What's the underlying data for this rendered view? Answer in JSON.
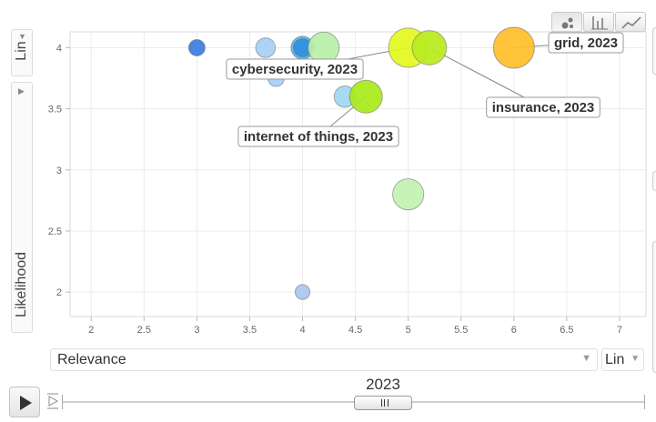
{
  "controls": {
    "chart_type_buttons": [
      {
        "icon": "bubble-chart-icon",
        "active": true
      },
      {
        "icon": "bar-chart-icon",
        "active": false
      },
      {
        "icon": "line-chart-icon",
        "active": false
      }
    ],
    "y_scale_label": "Lin",
    "y_metric_label": "Likelihood",
    "x_metric_label": "Relevance",
    "x_scale_label": "Lin",
    "play_icon": "play-icon",
    "speed_icon": "speed-icon",
    "time_label": "2023",
    "time_slider_grip_icon": "slider-grip-icon"
  },
  "chart_data": {
    "type": "scatter",
    "xlabel": "Relevance",
    "ylabel": "Likelihood",
    "xlim": [
      1.8,
      7.25
    ],
    "ylim": [
      1.8,
      4.13
    ],
    "x_ticks": [
      "2",
      "2.5",
      "3",
      "3.5",
      "4",
      "4.5",
      "5",
      "5.5",
      "6",
      "6.5",
      "7"
    ],
    "y_ticks": [
      "2",
      "2.5",
      "3",
      "3.5",
      "4"
    ],
    "grid": true,
    "points": [
      {
        "x": 3.0,
        "y": 4.0,
        "size": 1.0,
        "color": "#3a7de0"
      },
      {
        "x": 3.65,
        "y": 4.0,
        "size": 1.2,
        "color": "#a6d0f5"
      },
      {
        "x": 3.75,
        "y": 3.75,
        "size": 1.0,
        "color": "#a6d0f5"
      },
      {
        "x": 4.0,
        "y": 4.0,
        "size": 1.4,
        "color": "#52b4ea"
      },
      {
        "x": 4.0,
        "y": 4.0,
        "size": 1.1,
        "color": "#2f90e0"
      },
      {
        "x": 4.2,
        "y": 4.0,
        "size": 1.9,
        "color": "#b9f0a8"
      },
      {
        "x": 4.0,
        "y": 2.0,
        "size": 0.9,
        "color": "#a9c5ef"
      },
      {
        "x": 4.4,
        "y": 3.6,
        "size": 1.3,
        "color": "#9fd8f2"
      },
      {
        "x": 4.6,
        "y": 3.6,
        "size": 2.0,
        "color": "#a8ea1a"
      },
      {
        "x": 5.0,
        "y": 2.8,
        "size": 1.9,
        "color": "#c2f2b2"
      },
      {
        "x": 5.0,
        "y": 4.0,
        "size": 2.4,
        "color": "#e3f81f"
      },
      {
        "x": 5.2,
        "y": 4.0,
        "size": 2.1,
        "color": "#b8ec1e"
      },
      {
        "x": 6.0,
        "y": 4.0,
        "size": 2.5,
        "color": "#ffbf2a"
      }
    ],
    "annotations": [
      {
        "text": "cybersecurity, 2023"
      },
      {
        "text": "grid, 2023"
      },
      {
        "text": "insurance, 2023"
      },
      {
        "text": "internet of things, 2023"
      }
    ]
  }
}
